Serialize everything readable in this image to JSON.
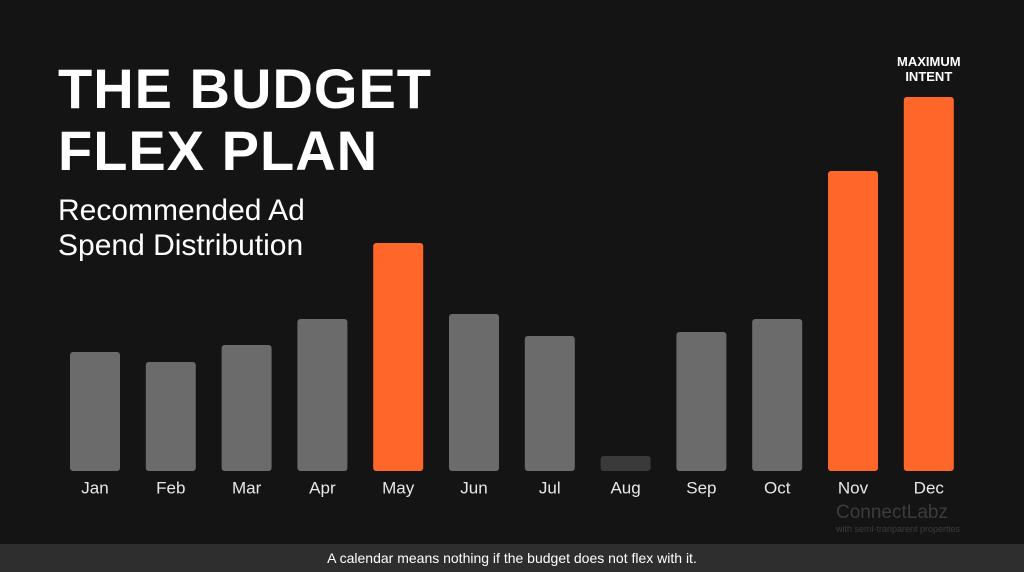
{
  "chart_data": {
    "type": "bar",
    "title": "THE BUDGET FLEX PLAN",
    "subtitle": "Recommended Ad Spend Distribution",
    "categories": [
      "Jan",
      "Feb",
      "Mar",
      "Apr",
      "May",
      "Jun",
      "Jul",
      "Aug",
      "Sep",
      "Oct",
      "Nov",
      "Dec"
    ],
    "values": [
      119,
      109,
      126,
      152,
      228,
      157,
      135,
      15,
      139,
      152,
      300,
      374
    ],
    "colors": [
      "#6b6b6b",
      "#6b6b6b",
      "#6b6b6b",
      "#6b6b6b",
      "#ff672a",
      "#6b6b6b",
      "#6b6b6b",
      "#3a3a3a",
      "#6b6b6b",
      "#6b6b6b",
      "#ff672a",
      "#ff672a"
    ],
    "annotation": "MAXIMUM INTENT",
    "caption": "A calendar means nothing if the budget does not flex with it.",
    "watermark": "ConnectLabz",
    "watermark_subtitle": "with semi-tranparent properties"
  }
}
